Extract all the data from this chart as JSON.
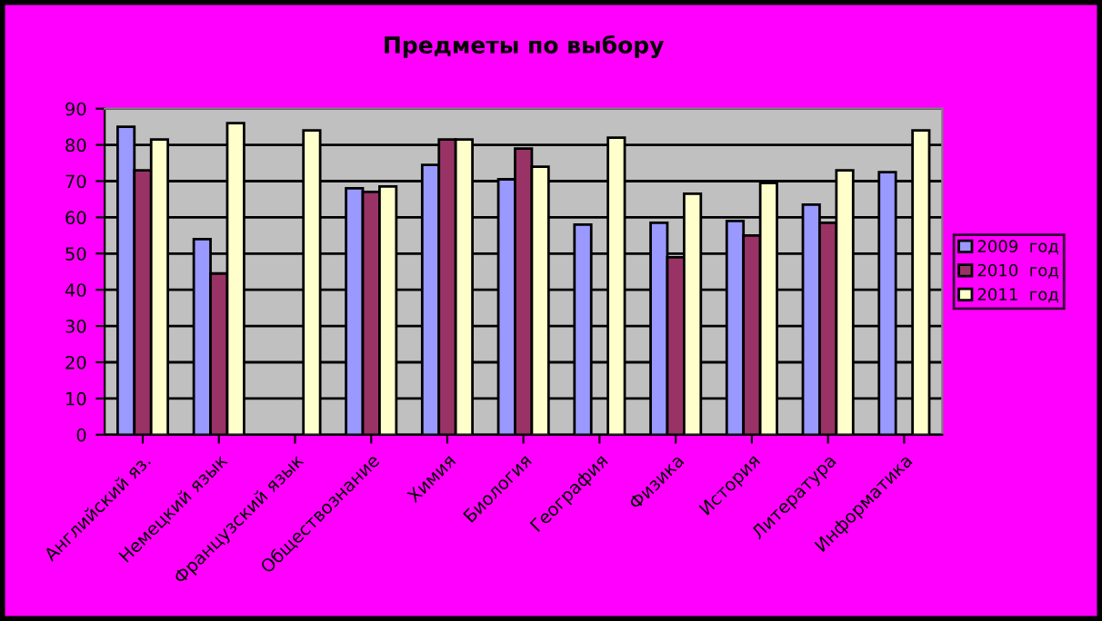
{
  "chart_data": {
    "type": "bar",
    "title": "Предметы по выбору",
    "categories": [
      "Английский яз.",
      "Немецкий язык",
      "Французский язык",
      "Обществознание",
      "Химия",
      "Биология",
      "География",
      "Физика",
      "История",
      "Литература",
      "Информатика"
    ],
    "series": [
      {
        "name": "2009  год",
        "color": "#9999ff",
        "values": [
          85,
          54,
          null,
          68,
          74.5,
          70.5,
          58,
          58.5,
          59,
          63.5,
          72.5
        ]
      },
      {
        "name": "2010  год",
        "color": "#993366",
        "values": [
          73,
          44.5,
          null,
          67,
          81.5,
          79,
          null,
          49,
          55,
          58.5,
          null
        ]
      },
      {
        "name": "2011  год",
        "color": "#ffffcc",
        "values": [
          81.5,
          86,
          84,
          68.5,
          81.5,
          74,
          82,
          66.5,
          69.5,
          73,
          84
        ]
      }
    ],
    "ylim": [
      0,
      90
    ],
    "yticks": [
      0,
      10,
      20,
      30,
      40,
      50,
      60,
      70,
      80,
      90
    ],
    "grid": "y",
    "legend": "right"
  }
}
